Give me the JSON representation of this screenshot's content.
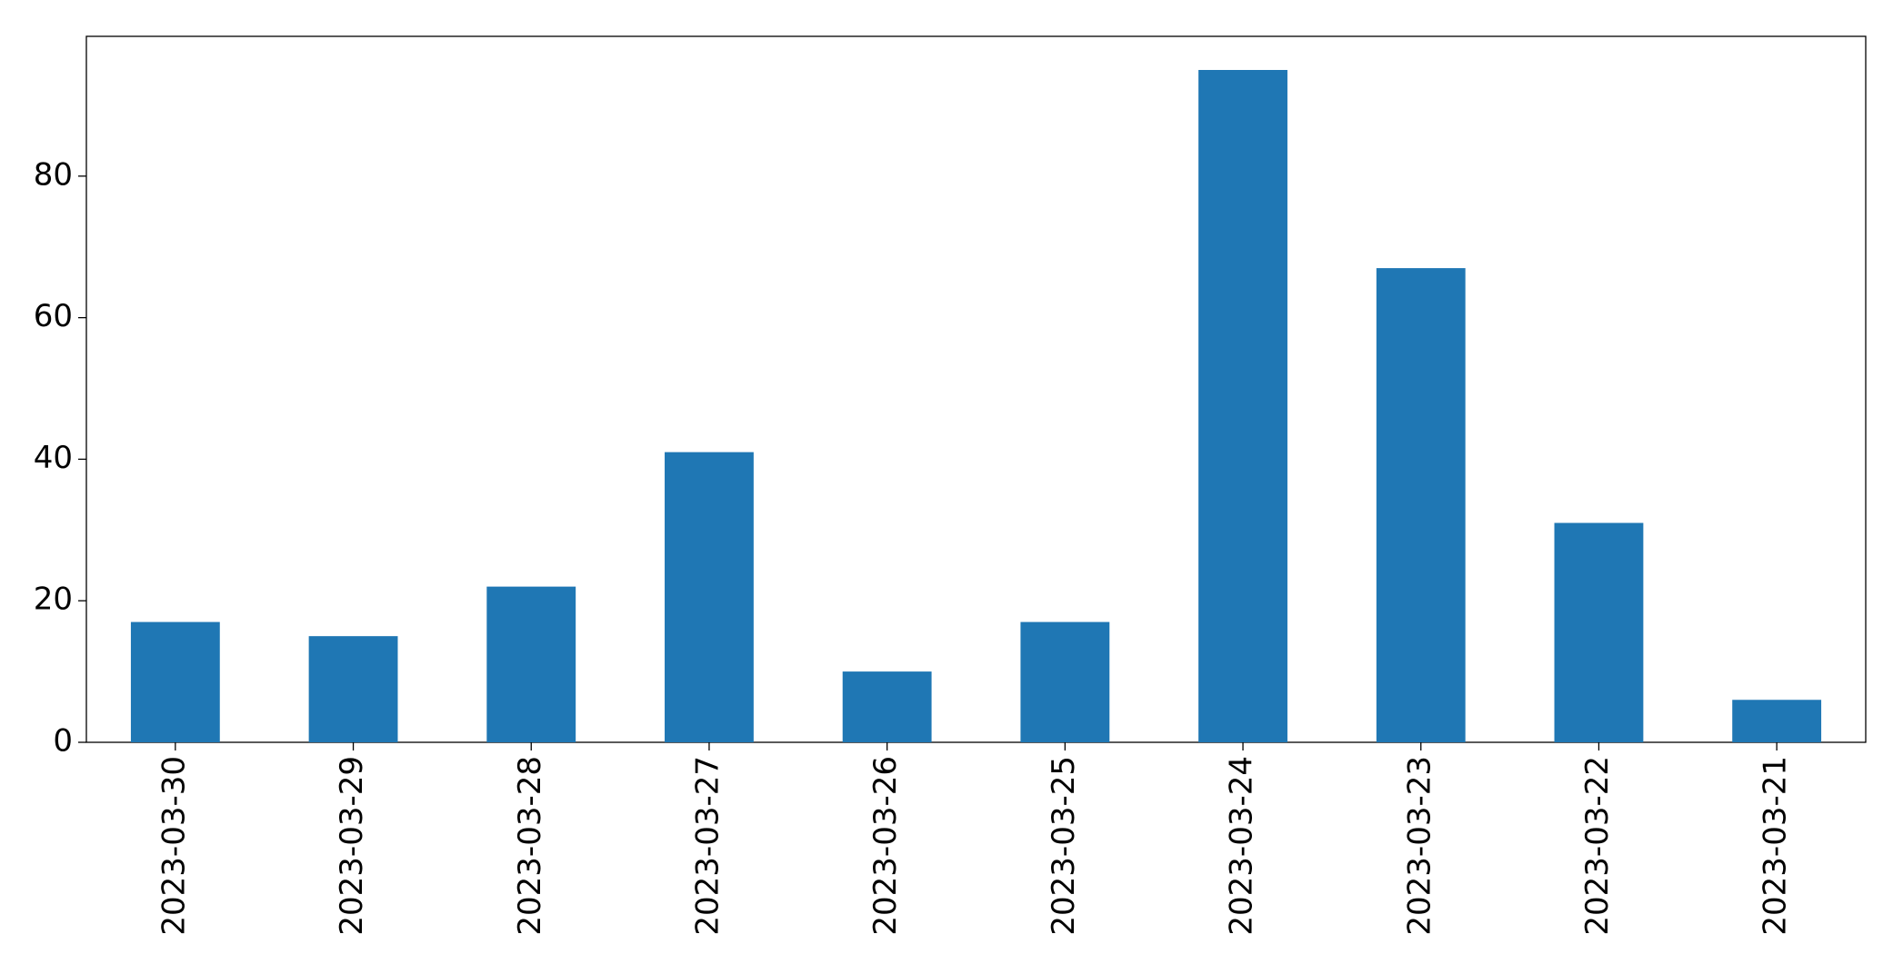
{
  "chart_data": {
    "type": "bar",
    "categories": [
      "2023-03-30",
      "2023-03-29",
      "2023-03-28",
      "2023-03-27",
      "2023-03-26",
      "2023-03-25",
      "2023-03-24",
      "2023-03-23",
      "2023-03-22",
      "2023-03-21"
    ],
    "values": [
      17,
      15,
      22,
      41,
      10,
      17,
      95,
      67,
      31,
      6
    ],
    "color": "#1f77b4",
    "ylim": [
      0,
      99.75
    ],
    "yticks": [
      0,
      20,
      40,
      60,
      80
    ],
    "grid": false
  }
}
